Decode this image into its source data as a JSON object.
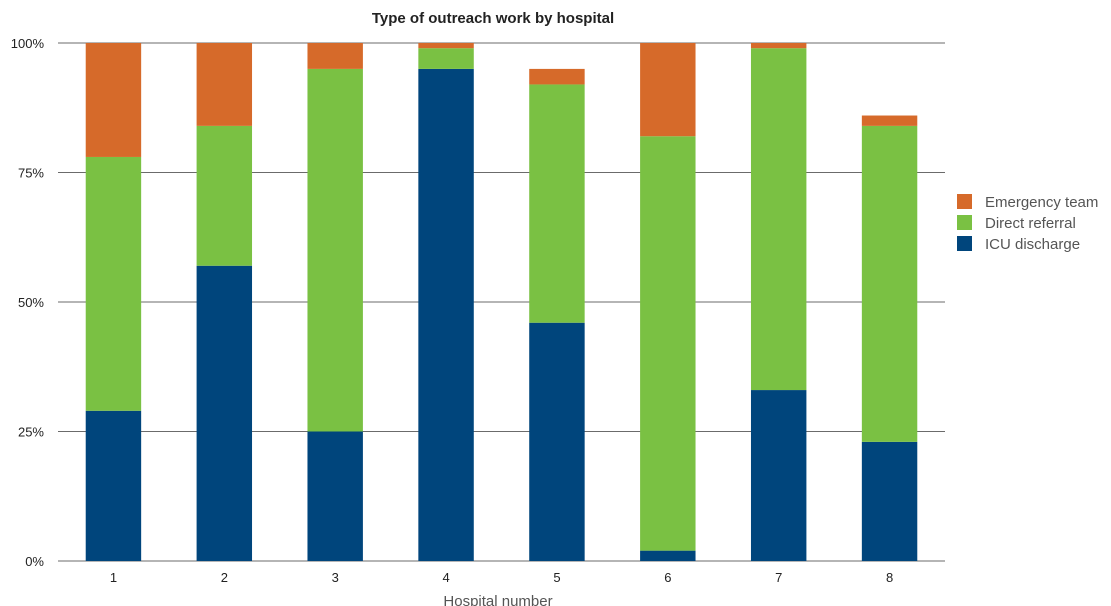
{
  "chart_data": {
    "type": "bar",
    "stacked": true,
    "title": "Type of outreach work by hospital",
    "xlabel": "Hospital number",
    "ylabel": "",
    "categories": [
      "1",
      "2",
      "3",
      "4",
      "5",
      "6",
      "7",
      "8"
    ],
    "y_ticks": [
      "0%",
      "25%",
      "50%",
      "75%",
      "100%"
    ],
    "ylim": [
      0,
      100
    ],
    "grid": true,
    "legend_position": "right",
    "series": [
      {
        "name": "ICU discharge",
        "color": "#00457c",
        "values": [
          29,
          57,
          25,
          95,
          46,
          2,
          33,
          23
        ]
      },
      {
        "name": "Direct referral",
        "color": "#7ac143",
        "values": [
          49,
          27,
          70,
          4,
          46,
          80,
          66,
          61
        ]
      },
      {
        "name": "Emergency team",
        "color": "#d66a2a",
        "values": [
          22,
          16,
          5,
          1,
          3,
          18,
          1,
          2
        ]
      }
    ],
    "legend_order": [
      "Emergency team",
      "Direct referral",
      "ICU discharge"
    ]
  }
}
